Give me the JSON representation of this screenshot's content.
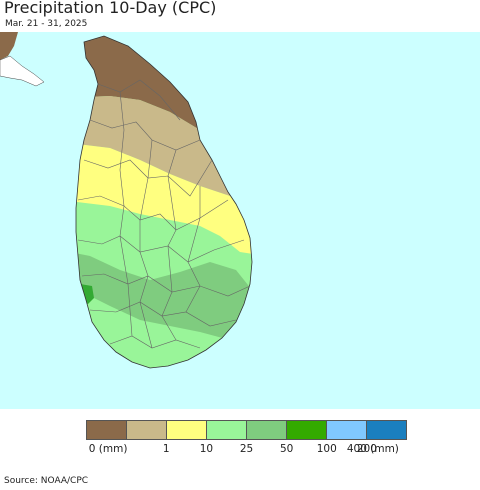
{
  "header": {
    "title": "Precipitation 10-Day (CPC)",
    "date_range": "Mar. 21 - 31, 2025"
  },
  "map": {
    "ocean_color": "#ccffff",
    "land_outside_color": "#e8d6b4",
    "region_colors": {
      "very_dry": "#8b6a4a",
      "dry": "#c9b98a",
      "low": "#ffff80",
      "moderate": "#99f599",
      "wetter": "#7fcc7f",
      "wettest": "#33aa33"
    }
  },
  "legend": {
    "colors": [
      "#8b6a4a",
      "#c9b98a",
      "#ffff80",
      "#99f599",
      "#7fcc7f",
      "#33aa00",
      "#80c8ff",
      "#1a7fbf"
    ],
    "labels": [
      "0 (mm)",
      "1",
      "10",
      "25",
      "50",
      "100",
      "200",
      "400 (mm)"
    ]
  },
  "footer": {
    "source": "Source: NOAA/CPC"
  }
}
